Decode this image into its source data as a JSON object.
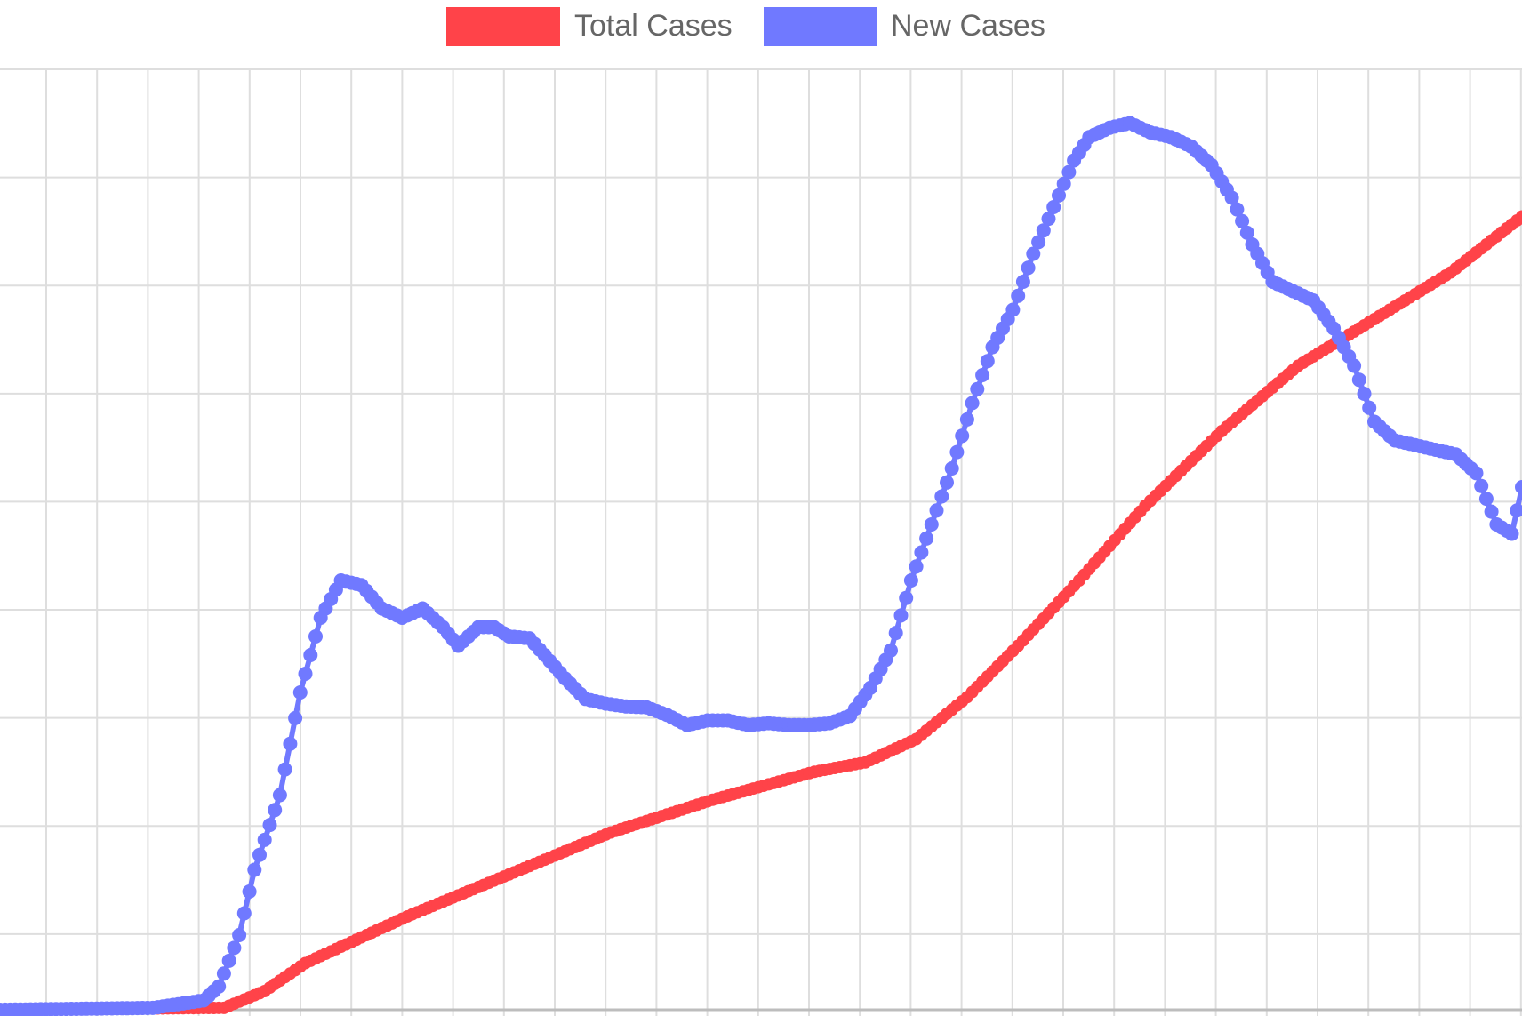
{
  "chart_data": {
    "type": "line",
    "title": "",
    "xlabel": "",
    "ylabel": "",
    "grid": true,
    "legend_position": "top",
    "x_count": 300,
    "y_range": [
      0,
      1.0
    ],
    "series": [
      {
        "name": "Total Cases",
        "color": "#ff4349",
        "axis": "left",
        "anchors": [
          [
            0,
            0
          ],
          [
            44,
            0.002
          ],
          [
            52,
            0.02
          ],
          [
            60,
            0.05
          ],
          [
            80,
            0.1
          ],
          [
            100,
            0.145
          ],
          [
            120,
            0.19
          ],
          [
            140,
            0.225
          ],
          [
            160,
            0.255
          ],
          [
            170,
            0.265
          ],
          [
            180,
            0.29
          ],
          [
            190,
            0.335
          ],
          [
            200,
            0.39
          ],
          [
            212,
            0.46
          ],
          [
            225,
            0.54
          ],
          [
            240,
            0.62
          ],
          [
            255,
            0.69
          ],
          [
            270,
            0.74
          ],
          [
            285,
            0.79
          ],
          [
            299,
            0.85
          ]
        ]
      },
      {
        "name": "New Cases",
        "color": "#7079ff",
        "axis": "right",
        "anchors": [
          [
            0,
            0
          ],
          [
            30,
            0.002
          ],
          [
            40,
            0.01
          ],
          [
            43,
            0.025
          ],
          [
            47,
            0.08
          ],
          [
            50,
            0.15
          ],
          [
            55,
            0.23
          ],
          [
            59,
            0.34
          ],
          [
            63,
            0.42
          ],
          [
            67,
            0.46
          ],
          [
            71,
            0.455
          ],
          [
            75,
            0.43
          ],
          [
            79,
            0.42
          ],
          [
            83,
            0.43
          ],
          [
            87,
            0.41
          ],
          [
            90,
            0.39
          ],
          [
            94,
            0.41
          ],
          [
            97,
            0.41
          ],
          [
            100,
            0.4
          ],
          [
            104,
            0.398
          ],
          [
            107,
            0.38
          ],
          [
            111,
            0.355
          ],
          [
            115,
            0.333
          ],
          [
            119,
            0.328
          ],
          [
            123,
            0.325
          ],
          [
            127,
            0.324
          ],
          [
            131,
            0.316
          ],
          [
            135,
            0.305
          ],
          [
            139,
            0.31
          ],
          [
            143,
            0.31
          ],
          [
            147,
            0.305
          ],
          [
            151,
            0.307
          ],
          [
            155,
            0.305
          ],
          [
            159,
            0.305
          ],
          [
            163,
            0.307
          ],
          [
            167,
            0.315
          ],
          [
            171,
            0.345
          ],
          [
            175,
            0.385
          ],
          [
            179,
            0.46
          ],
          [
            183,
            0.52
          ],
          [
            187,
            0.58
          ],
          [
            191,
            0.65
          ],
          [
            195,
            0.71
          ],
          [
            199,
            0.75
          ],
          [
            203,
            0.81
          ],
          [
            207,
            0.86
          ],
          [
            211,
            0.91
          ],
          [
            214,
            0.935
          ],
          [
            218,
            0.945
          ],
          [
            222,
            0.95
          ],
          [
            226,
            0.94
          ],
          [
            230,
            0.935
          ],
          [
            234,
            0.925
          ],
          [
            238,
            0.905
          ],
          [
            242,
            0.87
          ],
          [
            246,
            0.82
          ],
          [
            250,
            0.78
          ],
          [
            254,
            0.77
          ],
          [
            258,
            0.76
          ],
          [
            262,
            0.73
          ],
          [
            266,
            0.69
          ],
          [
            270,
            0.63
          ],
          [
            274,
            0.61
          ],
          [
            278,
            0.605
          ],
          [
            282,
            0.6
          ],
          [
            286,
            0.595
          ],
          [
            290,
            0.575
          ],
          [
            294,
            0.52
          ],
          [
            297,
            0.51
          ],
          [
            299,
            0.56
          ]
        ]
      }
    ]
  }
}
